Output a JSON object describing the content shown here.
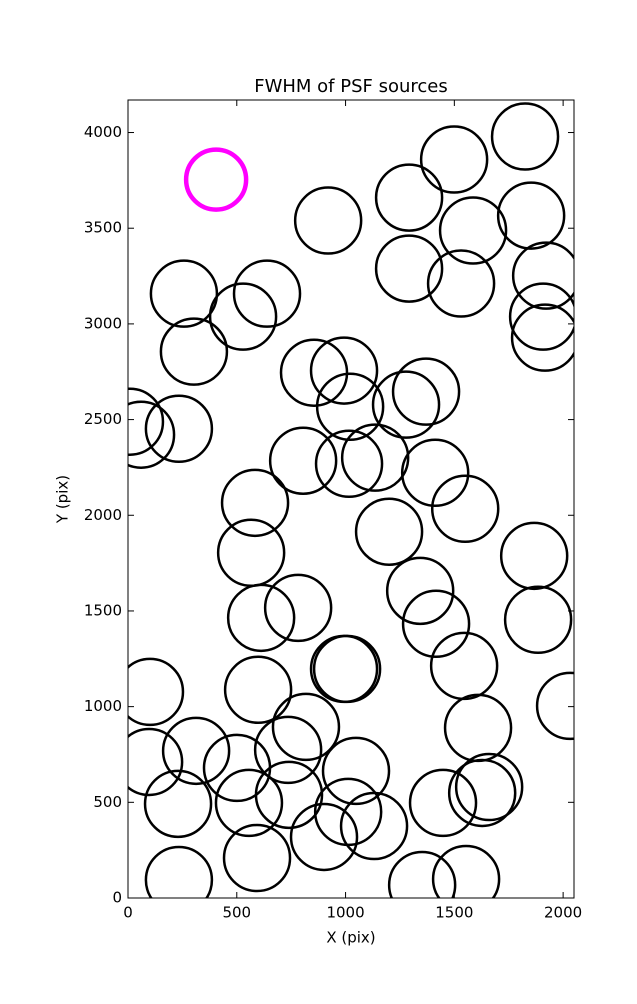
{
  "chart_data": {
    "type": "scatter",
    "title": "FWHM of PSF sources",
    "x_label": "X (pix)",
    "y_label": "Y (pix)",
    "xlim": [
      0,
      2050
    ],
    "ylim": [
      0,
      4170
    ],
    "xticks": [
      0,
      500,
      1000,
      1500,
      2000
    ],
    "yticks": [
      0,
      500,
      1000,
      1500,
      2000,
      2500,
      3000,
      3500,
      4000
    ],
    "series": [
      {
        "color": "#000000",
        "x": [
          1825,
          1499,
          1292,
          1853,
          920,
          1586,
          1922,
          1292,
          1531,
          1908,
          1917,
          257,
          639,
          529,
          303,
          855,
          993,
          1370,
          1021,
          1278,
          9,
          60,
          234,
          805,
          1016,
          1136,
          1412,
          1550,
          584,
          1200,
          1867,
          566,
          782,
          1343,
          1416,
          612,
          1885,
          993,
          1007,
          1545,
          101,
          598,
          2032,
          1609,
          818,
          97,
          313,
          501,
          736,
          1048,
          740,
          1660,
          1628,
          230,
          556,
          1012,
          1131,
          901,
          1448,
          593,
          234,
          1352,
          1554
        ],
        "y": [
          3979,
          3859,
          3660,
          3566,
          3540,
          3488,
          3252,
          3289,
          3211,
          3038,
          2928,
          3158,
          3158,
          3038,
          2855,
          2745,
          2756,
          2646,
          2567,
          2578,
          2489,
          2421,
          2452,
          2285,
          2269,
          2301,
          2222,
          2034,
          2065,
          1914,
          1788,
          1804,
          1516,
          1605,
          1433,
          1464,
          1454,
          1197,
          1197,
          1213,
          1077,
          1088,
          1004,
          889,
          894,
          711,
          769,
          680,
          774,
          664,
          539,
          580,
          549,
          492,
          497,
          450,
          376,
          319,
          497,
          209,
          94,
          68,
          99
        ]
      },
      {
        "color": "#ff00ff",
        "x": [
          405
        ],
        "y": [
          3754
        ]
      }
    ]
  }
}
